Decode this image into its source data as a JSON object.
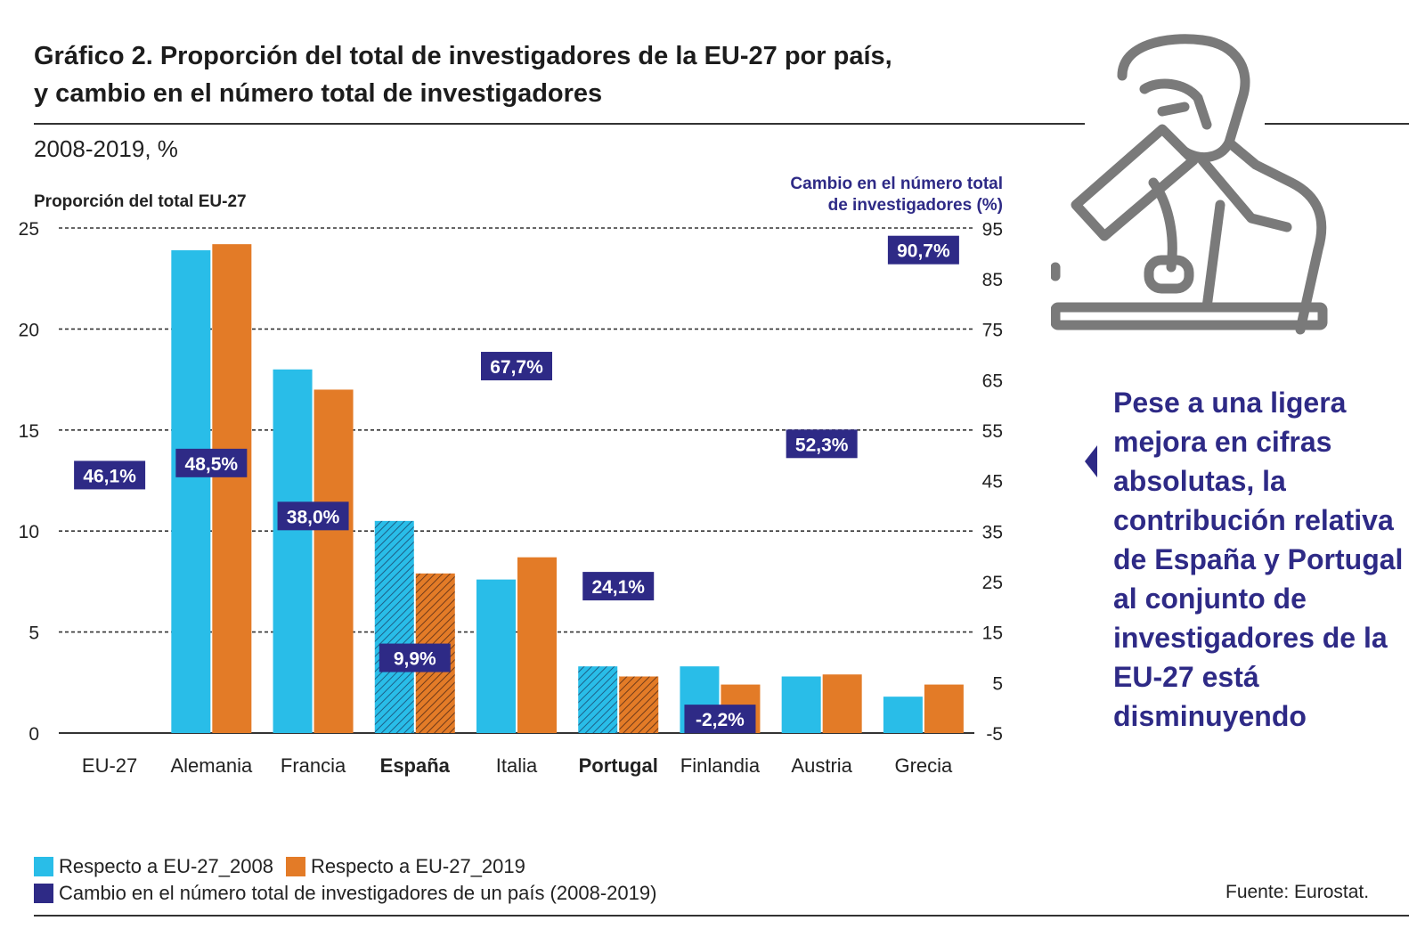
{
  "header": {
    "title_line1": "Gráfico 2. Proporción del total de investigadores de la EU-27 por país,",
    "title_line2": "y cambio en el número total de investigadores",
    "subtitle": "2008-2019, %"
  },
  "side": {
    "text": "Pese a una ligera mejora en cifras absolutas, la contribución relativa de España y Portugal al conjunto de investigadores de la EU-27 está disminuyendo"
  },
  "legend": {
    "series1": "Respecto a EU-27_2008",
    "series2": "Respecto a EU-27_2019",
    "series3": "Cambio en el número total de investigadores de un país (2008-2019)"
  },
  "source": "Fuente: Eurostat.",
  "colors": {
    "blue": "#29bde8",
    "orange": "#e37b27",
    "navy": "#2e2a86",
    "icon": "#7a7a7a"
  },
  "chart_data": {
    "type": "bar",
    "ylabel": "Proporción del total EU-27",
    "y2label_line1": "Cambio en el número total",
    "y2label_line2": "de investigadores (%)",
    "ylim": [
      0,
      25
    ],
    "yticks": [
      0,
      5,
      10,
      15,
      20,
      25
    ],
    "y2lim": [
      -5,
      100
    ],
    "y2ticks": [
      -5,
      5,
      15,
      25,
      35,
      45,
      55,
      65,
      75,
      85,
      95
    ],
    "categories": [
      "EU-27",
      "Alemania",
      "Francia",
      "España",
      "Italia",
      "Portugal",
      "Finlandia",
      "Austria",
      "Grecia"
    ],
    "bold_categories": [
      "España",
      "Portugal"
    ],
    "hatched_categories": [
      "España",
      "Portugal"
    ],
    "series": [
      {
        "name": "Respecto a EU-27_2008",
        "values": [
          null,
          23.9,
          18.0,
          10.5,
          7.6,
          3.3,
          3.3,
          2.8,
          1.8
        ]
      },
      {
        "name": "Respecto a EU-27_2019",
        "values": [
          null,
          24.2,
          17.0,
          7.9,
          8.7,
          2.8,
          2.4,
          2.9,
          2.4
        ]
      }
    ],
    "change": {
      "name": "Cambio en el número total de investigadores de un país (2008-2019)",
      "values": [
        46.1,
        48.5,
        38.0,
        9.9,
        67.7,
        24.1,
        -2.2,
        52.3,
        90.7
      ],
      "labels": [
        "46,1%",
        "48,5%",
        "38,0%",
        "9,9%",
        "67,7%",
        "24,1%",
        "-2,2%",
        "52,3%",
        "90,7%"
      ]
    },
    "grid": "dashed"
  }
}
